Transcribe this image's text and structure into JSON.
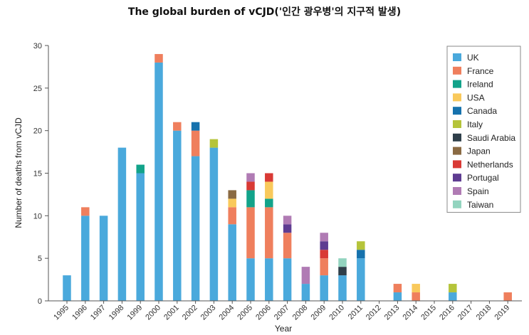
{
  "chart_data": {
    "type": "bar",
    "stacked": true,
    "title": "The global burden of vCJD('인간 광우병'의 지구적 발생)",
    "xlabel": "Year",
    "ylabel": "Number of deaths from vCJD",
    "ylim": [
      0,
      30
    ],
    "yticks": [
      0,
      5,
      10,
      15,
      20,
      25,
      30
    ],
    "legend_position": "top-right",
    "grid": false,
    "categories": [
      "1995",
      "1996",
      "1997",
      "1998",
      "1999",
      "2000",
      "2001",
      "2002",
      "2003",
      "2004",
      "2005",
      "2006",
      "2007",
      "2008",
      "2009",
      "2010",
      "2011",
      "2012",
      "2013",
      "2014",
      "2015",
      "2016",
      "2017",
      "2018",
      "2019"
    ],
    "series": [
      {
        "name": "UK",
        "color": "#4aa9dc",
        "values": [
          3,
          10,
          10,
          18,
          15,
          28,
          20,
          17,
          18,
          9,
          5,
          5,
          5,
          2,
          3,
          3,
          5,
          0,
          1,
          0,
          0,
          1,
          0,
          0,
          0
        ]
      },
      {
        "name": "France",
        "color": "#ef7f5d",
        "values": [
          0,
          1,
          0,
          0,
          0,
          1,
          1,
          3,
          0,
          2,
          6,
          6,
          3,
          0,
          2,
          0,
          0,
          0,
          1,
          1,
          0,
          0,
          0,
          0,
          1
        ]
      },
      {
        "name": "Ireland",
        "color": "#12a38a",
        "values": [
          0,
          0,
          0,
          0,
          1,
          0,
          0,
          0,
          0,
          0,
          2,
          1,
          0,
          0,
          0,
          0,
          0,
          0,
          0,
          0,
          0,
          0,
          0,
          0,
          0
        ]
      },
      {
        "name": "USA",
        "color": "#f9c95b",
        "values": [
          0,
          0,
          0,
          0,
          0,
          0,
          0,
          0,
          0,
          1,
          0,
          2,
          0,
          0,
          0,
          0,
          0,
          0,
          0,
          1,
          0,
          0,
          0,
          0,
          0
        ]
      },
      {
        "name": "Canada",
        "color": "#1672ad",
        "values": [
          0,
          0,
          0,
          0,
          0,
          0,
          0,
          1,
          0,
          0,
          0,
          0,
          0,
          0,
          0,
          0,
          1,
          0,
          0,
          0,
          0,
          0,
          0,
          0,
          0
        ]
      },
      {
        "name": "Italy",
        "color": "#b5c43a",
        "values": [
          0,
          0,
          0,
          0,
          0,
          0,
          0,
          0,
          1,
          0,
          0,
          0,
          0,
          0,
          0,
          0,
          1,
          0,
          0,
          0,
          0,
          1,
          0,
          0,
          0
        ]
      },
      {
        "name": "Saudi Arabia",
        "color": "#2f3f4a",
        "values": [
          0,
          0,
          0,
          0,
          0,
          0,
          0,
          0,
          0,
          0,
          0,
          0,
          0,
          0,
          0,
          1,
          0,
          0,
          0,
          0,
          0,
          0,
          0,
          0,
          0
        ]
      },
      {
        "name": "Japan",
        "color": "#8a6a43",
        "values": [
          0,
          0,
          0,
          0,
          0,
          0,
          0,
          0,
          0,
          1,
          0,
          0,
          0,
          0,
          0,
          0,
          0,
          0,
          0,
          0,
          0,
          0,
          0,
          0,
          0
        ]
      },
      {
        "name": "Netherlands",
        "color": "#d93a35",
        "values": [
          0,
          0,
          0,
          0,
          0,
          0,
          0,
          0,
          0,
          0,
          1,
          1,
          0,
          0,
          1,
          0,
          0,
          0,
          0,
          0,
          0,
          0,
          0,
          0,
          0
        ]
      },
      {
        "name": "Portugal",
        "color": "#5e3c91",
        "values": [
          0,
          0,
          0,
          0,
          0,
          0,
          0,
          0,
          0,
          0,
          0,
          0,
          1,
          0,
          1,
          0,
          0,
          0,
          0,
          0,
          0,
          0,
          0,
          0,
          0
        ]
      },
      {
        "name": "Spain",
        "color": "#b07bb4",
        "values": [
          0,
          0,
          0,
          0,
          0,
          0,
          0,
          0,
          0,
          0,
          1,
          0,
          1,
          2,
          1,
          0,
          0,
          0,
          0,
          0,
          0,
          0,
          0,
          0,
          0
        ]
      },
      {
        "name": "Taiwan",
        "color": "#93d4bf",
        "values": [
          0,
          0,
          0,
          0,
          0,
          0,
          0,
          0,
          0,
          0,
          0,
          0,
          0,
          0,
          0,
          1,
          0,
          0,
          0,
          0,
          0,
          0,
          0,
          0,
          0
        ]
      }
    ]
  }
}
